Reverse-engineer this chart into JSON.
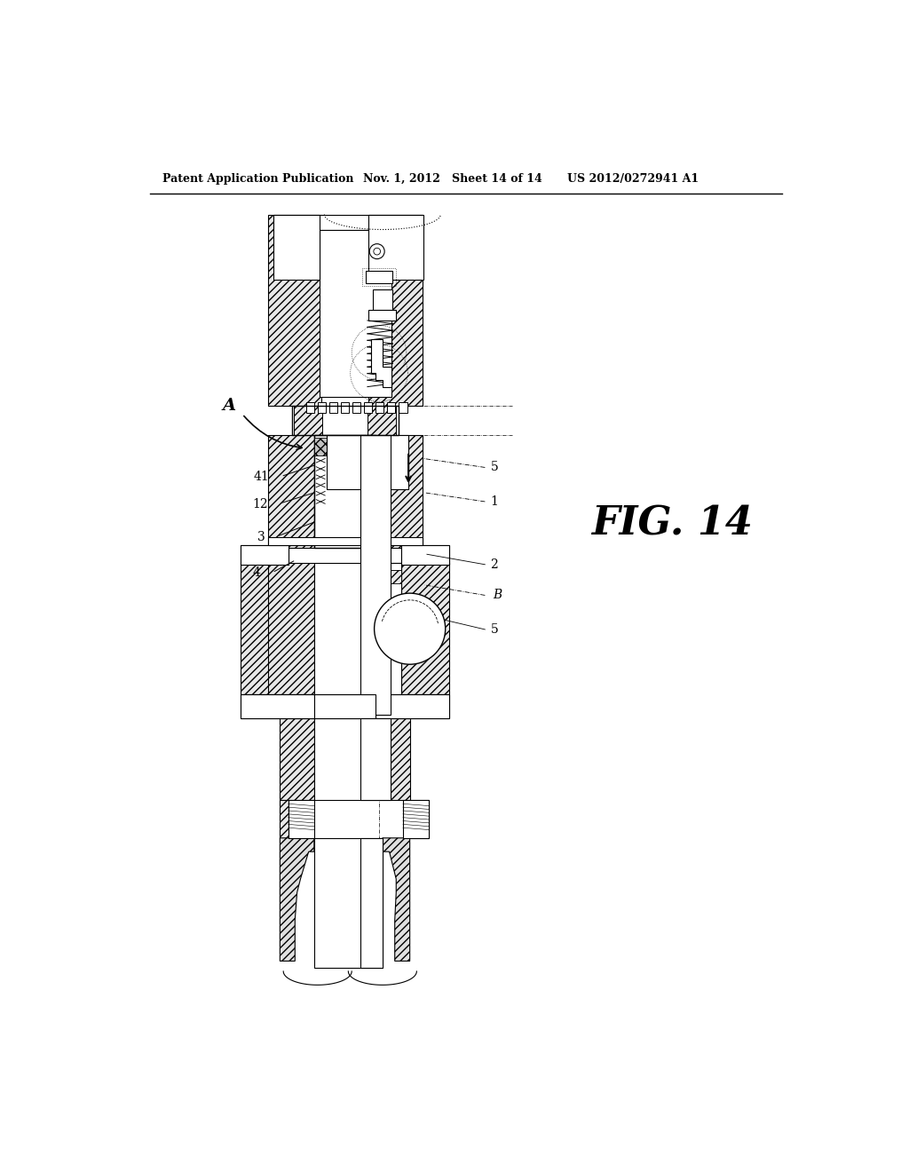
{
  "header_left": "Patent Application Publication",
  "header_mid": "Nov. 1, 2012   Sheet 14 of 14",
  "header_right": "US 2012/0272941 A1",
  "fig_label": "FIG. 14",
  "label_A": "A",
  "label_B": "B",
  "ref_1": "1",
  "ref_2": "2",
  "ref_3": "3",
  "ref_4": "4",
  "ref_5": "5",
  "ref_12": "12",
  "ref_41": "41",
  "bg_color": "#ffffff",
  "line_color": "#000000"
}
